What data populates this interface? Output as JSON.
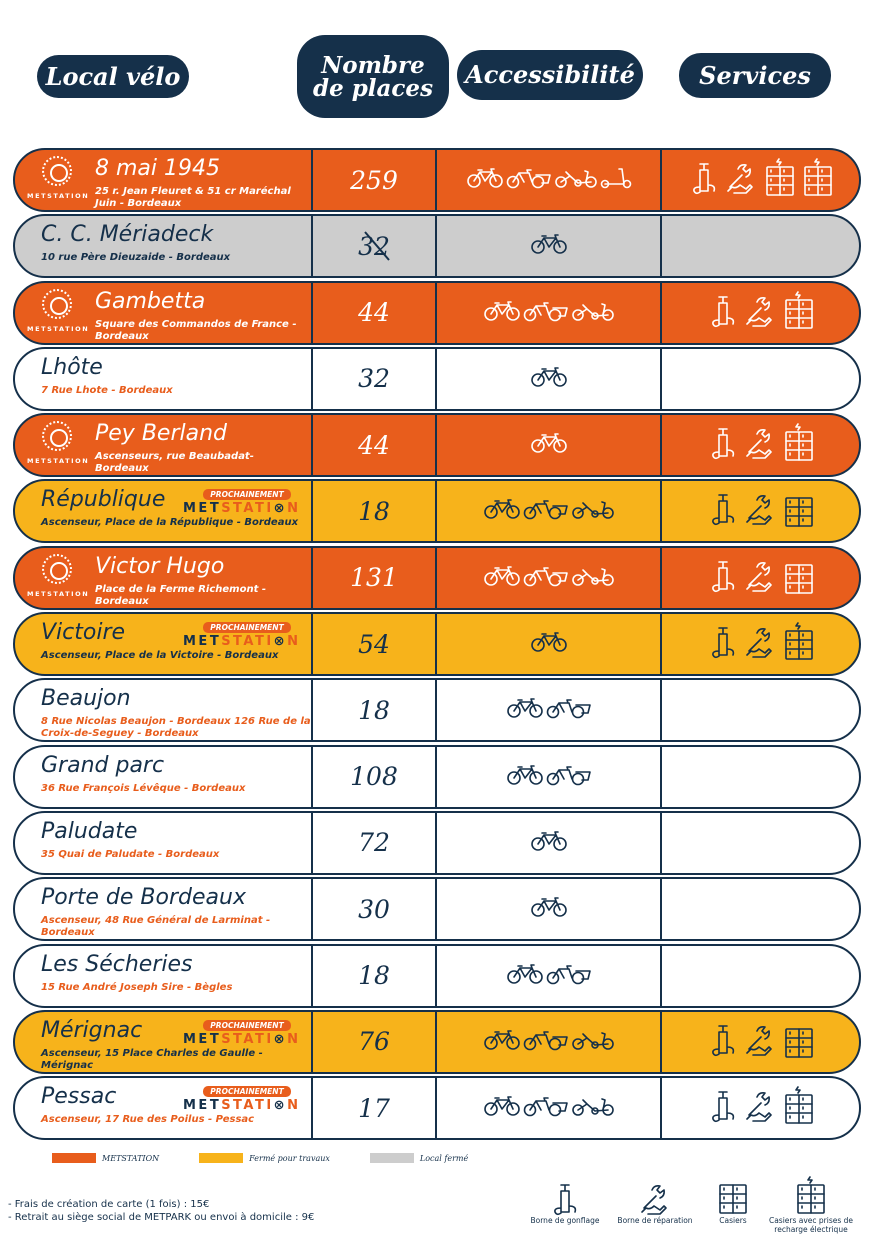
{
  "headers": {
    "local": "Local vélo",
    "places": "Nombre de places",
    "access": "Accessibilité",
    "services": "Services"
  },
  "colors": {
    "navy": "#15304a",
    "orange": "#e85d1c",
    "yellow": "#f7b31b",
    "grey": "#cdcdcd"
  },
  "logo_text": "METSTATION",
  "prochain": {
    "tag": "PROCHAINEMENT",
    "brand_a": "MET",
    "brand_b": "STATI",
    "brand_c": "N"
  },
  "rows": [
    {
      "name": "8 mai 1945",
      "addr": "25 r. Jean Fleuret & 51 cr Maréchal Juin - Bordeaux",
      "places": "259",
      "style": "orange",
      "logo": true,
      "access": [
        "bike",
        "cargo",
        "trike",
        "scooter"
      ],
      "services": [
        "pump",
        "repair",
        "lockers-elec",
        "lockers-elec"
      ]
    },
    {
      "name": "C. C. Mériadeck",
      "addr": "10 rue Père Dieuzaide - Bordeaux",
      "places": "32",
      "struck": true,
      "style": "grey",
      "access": [
        "bike"
      ],
      "services": []
    },
    {
      "name": "Gambetta",
      "addr": "Square des Commandos de France - Bordeaux",
      "places": "44",
      "style": "orange",
      "logo": true,
      "access": [
        "bike",
        "cargo",
        "trike"
      ],
      "services": [
        "pump",
        "repair",
        "lockers-elec"
      ]
    },
    {
      "name": "Lhôte",
      "addr": "7 Rue Lhote - Bordeaux",
      "places": "32",
      "style": "white",
      "access": [
        "bike"
      ],
      "services": []
    },
    {
      "name": "Pey Berland",
      "addr": "Ascenseurs, rue Beaubadat- Bordeaux",
      "places": "44",
      "style": "orange",
      "logo": true,
      "access": [
        "bike"
      ],
      "services": [
        "pump",
        "repair",
        "lockers-elec"
      ]
    },
    {
      "name": "République",
      "addr": "Ascenseur, Place de la République - Bordeaux",
      "places": "18",
      "style": "yellow",
      "prochain": true,
      "access": [
        "bike",
        "cargo",
        "trike"
      ],
      "services": [
        "pump",
        "repair",
        "lockers"
      ]
    },
    {
      "name": "Victor Hugo",
      "addr": "Place de la Ferme Richemont - Bordeaux",
      "places": "131",
      "style": "orange",
      "logo": true,
      "access": [
        "bike",
        "cargo",
        "trike"
      ],
      "services": [
        "pump",
        "repair",
        "lockers"
      ]
    },
    {
      "name": "Victoire",
      "addr": "Ascenseur, Place de la Victoire - Bordeaux",
      "places": "54",
      "style": "yellow",
      "prochain": true,
      "access": [
        "bike"
      ],
      "services": [
        "pump",
        "repair",
        "lockers-elec"
      ]
    },
    {
      "name": "Beaujon",
      "addr": "8 Rue Nicolas Beaujon - Bordeaux 126 Rue de la Croix-de-Seguey - Bordeaux",
      "places": "18",
      "style": "white",
      "access": [
        "bike",
        "cargo"
      ],
      "services": []
    },
    {
      "name": "Grand parc",
      "addr": "36 Rue François Lévêque - Bordeaux",
      "places": "108",
      "style": "white",
      "access": [
        "bike",
        "cargo"
      ],
      "services": []
    },
    {
      "name": "Paludate",
      "addr": "35 Quai de Paludate - Bordeaux",
      "places": "72",
      "style": "white",
      "access": [
        "bike"
      ],
      "services": []
    },
    {
      "name": "Porte de Bordeaux",
      "addr": "Ascenseur, 48 Rue Général de Larminat - Bordeaux",
      "places": "30",
      "style": "white",
      "access": [
        "bike"
      ],
      "services": []
    },
    {
      "name": "Les Sécheries",
      "addr": "15 Rue André Joseph Sire - Bègles",
      "places": "18",
      "style": "white",
      "access": [
        "bike",
        "cargo"
      ],
      "services": []
    },
    {
      "name": "Mérignac",
      "addr": "Ascenseur, 15 Place Charles de Gaulle - Mérignac",
      "places": "76",
      "style": "yellow",
      "prochain": true,
      "access": [
        "bike",
        "cargo",
        "trike"
      ],
      "services": [
        "pump",
        "repair",
        "lockers"
      ]
    },
    {
      "name": "Pessac",
      "addr": "Ascenseur, 17 Rue des Poilus - Pessac",
      "places": "17",
      "style": "white",
      "prochain": true,
      "access": [
        "bike",
        "cargo",
        "trike"
      ],
      "services": [
        "pump",
        "repair",
        "lockers-elec"
      ]
    }
  ],
  "legend": [
    {
      "color": "#e85d1c",
      "label": "METSTATION"
    },
    {
      "color": "#f7b31b",
      "label": "Fermé pour travaux"
    },
    {
      "color": "#cdcdcd",
      "label": "Local fermé"
    }
  ],
  "notes": [
    "- Frais de création de carte (1 fois) : 15€",
    "- Retrait au siège social de METPARK ou envoi à domicile : 9€"
  ],
  "service_legend": [
    {
      "icon": "pump",
      "label": "Borne de gonflage"
    },
    {
      "icon": "repair",
      "label": "Borne de réparation"
    },
    {
      "icon": "lockers",
      "label": "Casiers"
    },
    {
      "icon": "lockers-elec",
      "label": "Casiers avec prises de recharge électrique"
    }
  ]
}
